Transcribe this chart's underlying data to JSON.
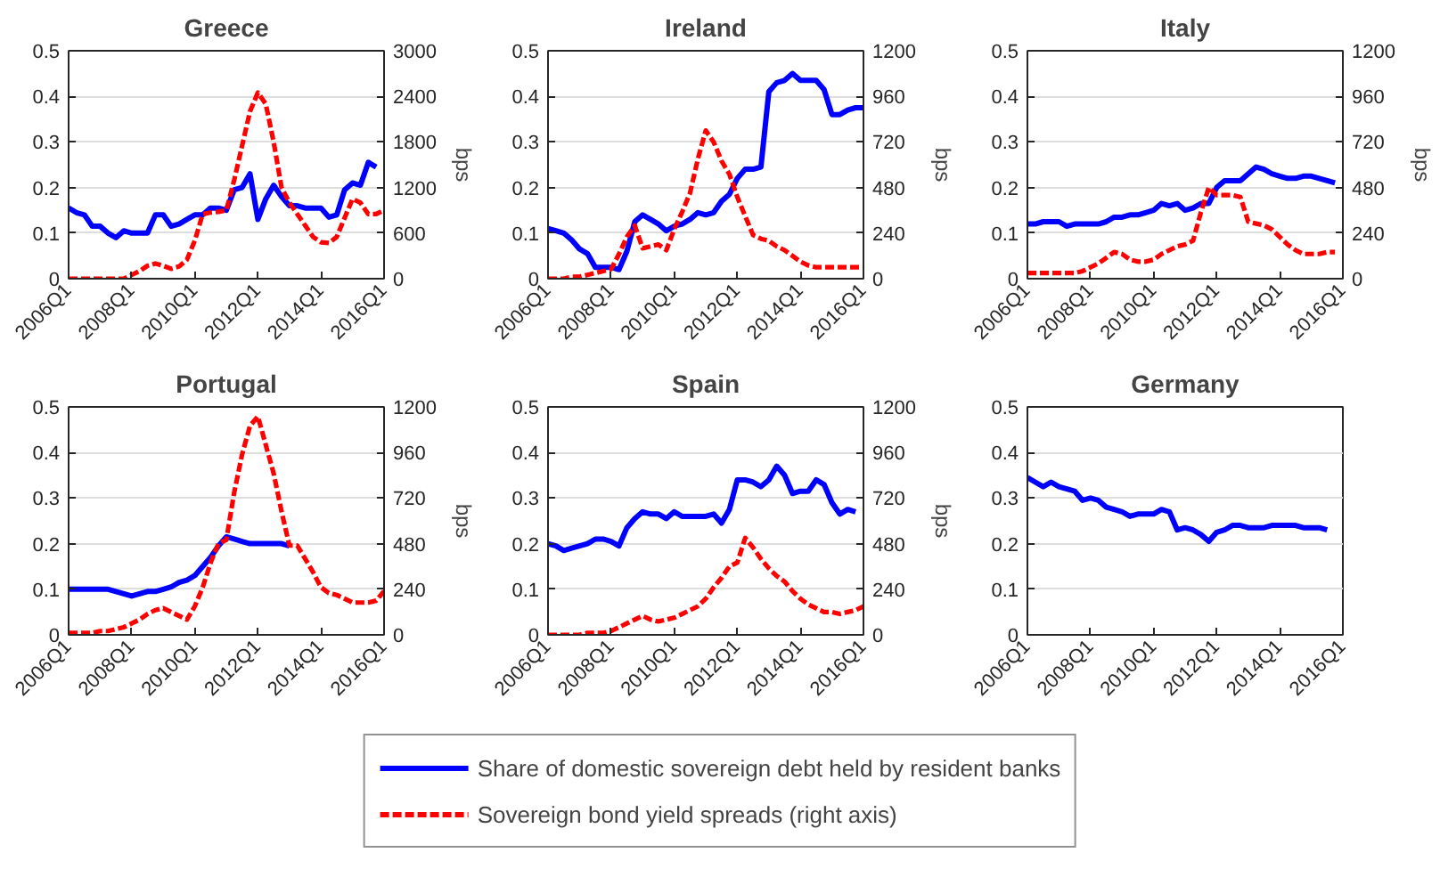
{
  "chart_data": [
    {
      "type": "line",
      "title": "Greece",
      "y2label": "bps",
      "ylim": [
        0,
        0.5
      ],
      "y2lim": [
        0,
        3000
      ],
      "categories": [
        "2006Q1",
        null,
        null,
        null,
        null,
        null,
        null,
        null,
        "2008Q1",
        null,
        null,
        null,
        null,
        null,
        null,
        null,
        "2010Q1",
        null,
        null,
        null,
        null,
        null,
        null,
        null,
        "2012Q1",
        null,
        null,
        null,
        null,
        null,
        null,
        null,
        "2014Q1",
        null,
        null,
        null,
        null,
        null,
        null,
        null,
        "2016Q1"
      ],
      "yticks": [
        0,
        0.1,
        0.2,
        0.3,
        0.4,
        0.5
      ],
      "y2ticks": [
        0,
        600,
        1200,
        1800,
        2400,
        3000
      ],
      "grid": "y",
      "legend": "bottom",
      "series": [
        {
          "name": "Share of domestic sovereign debt held by resident banks",
          "color": "#0000ff",
          "line_style": "solid",
          "values": [
            0.155,
            0.145,
            0.14,
            0.115,
            0.115,
            0.1,
            0.09,
            0.105,
            0.1,
            0.1,
            0.1,
            0.14,
            0.14,
            0.115,
            0.12,
            0.13,
            0.14,
            0.14,
            0.155,
            0.155,
            0.15,
            0.195,
            0.2,
            0.23,
            0.13,
            0.175,
            0.205,
            0.18,
            0.16,
            0.16,
            0.155,
            0.155,
            0.155,
            0.135,
            0.14,
            0.195,
            0.21,
            0.205,
            0.255,
            0.245,
            null
          ]
        },
        {
          "name": "Sovereign bond yield spreads (right axis)",
          "color": "#ff0000",
          "line_style": "dashed",
          "axis": "y2",
          "values": [
            0,
            0,
            0,
            0,
            0,
            0,
            0,
            0,
            50,
            100,
            170,
            200,
            170,
            130,
            160,
            250,
            500,
            850,
            870,
            880,
            900,
            1300,
            1750,
            2200,
            2450,
            2300,
            1800,
            1200,
            1000,
            850,
            700,
            550,
            480,
            470,
            550,
            800,
            1050,
            1000,
            850,
            850,
            900
          ]
        }
      ]
    },
    {
      "type": "line",
      "title": "Ireland",
      "y2label": "bps",
      "ylim": [
        0,
        0.5
      ],
      "y2lim": [
        0,
        1200
      ],
      "categories": [
        "2006Q1",
        null,
        null,
        null,
        null,
        null,
        null,
        null,
        "2008Q1",
        null,
        null,
        null,
        null,
        null,
        null,
        null,
        "2010Q1",
        null,
        null,
        null,
        null,
        null,
        null,
        null,
        "2012Q1",
        null,
        null,
        null,
        null,
        null,
        null,
        null,
        "2014Q1",
        null,
        null,
        null,
        null,
        null,
        null,
        null,
        "2016Q1"
      ],
      "yticks": [
        0,
        0.1,
        0.2,
        0.3,
        0.4,
        0.5
      ],
      "y2ticks": [
        0,
        240,
        480,
        720,
        960,
        1200
      ],
      "grid": "y",
      "series": [
        {
          "color": "#0000ff",
          "line_style": "solid",
          "values": [
            0.11,
            0.105,
            0.1,
            0.085,
            0.065,
            0.055,
            0.025,
            0.025,
            0.025,
            0.02,
            0.06,
            0.125,
            0.14,
            0.13,
            0.12,
            0.105,
            0.115,
            0.12,
            0.13,
            0.145,
            0.14,
            0.145,
            0.17,
            0.185,
            0.22,
            0.24,
            0.24,
            0.245,
            0.41,
            0.43,
            0.435,
            0.45,
            0.435,
            0.435,
            0.435,
            0.415,
            0.36,
            0.36,
            0.37,
            0.375,
            0.375
          ]
        },
        {
          "color": "#ff0000",
          "line_style": "dashed",
          "axis": "y2",
          "values": [
            0,
            0,
            0,
            10,
            10,
            20,
            30,
            40,
            50,
            130,
            220,
            280,
            160,
            170,
            180,
            150,
            260,
            350,
            450,
            630,
            780,
            720,
            620,
            550,
            430,
            330,
            230,
            210,
            200,
            170,
            150,
            120,
            90,
            70,
            60,
            60,
            60,
            60,
            60,
            60,
            60
          ]
        }
      ]
    },
    {
      "type": "line",
      "title": "Italy",
      "y2label": "bps",
      "ylim": [
        0,
        0.5
      ],
      "y2lim": [
        0,
        1200
      ],
      "categories": [
        "2006Q1",
        null,
        null,
        null,
        null,
        null,
        null,
        null,
        "2008Q1",
        null,
        null,
        null,
        null,
        null,
        null,
        null,
        "2010Q1",
        null,
        null,
        null,
        null,
        null,
        null,
        null,
        "2012Q1",
        null,
        null,
        null,
        null,
        null,
        null,
        null,
        "2014Q1",
        null,
        null,
        null,
        null,
        null,
        null,
        null,
        "2016Q1"
      ],
      "yticks": [
        0,
        0.1,
        0.2,
        0.3,
        0.4,
        0.5
      ],
      "y2ticks": [
        0,
        240,
        480,
        720,
        960,
        1200
      ],
      "grid": "y",
      "series": [
        {
          "color": "#0000ff",
          "line_style": "solid",
          "values": [
            0.12,
            0.12,
            0.125,
            0.125,
            0.125,
            0.115,
            0.12,
            0.12,
            0.12,
            0.12,
            0.125,
            0.135,
            0.135,
            0.14,
            0.14,
            0.145,
            0.15,
            0.165,
            0.16,
            0.165,
            0.15,
            0.155,
            0.165,
            0.165,
            0.2,
            0.215,
            0.215,
            0.215,
            0.23,
            0.245,
            0.24,
            0.23,
            0.225,
            0.22,
            0.22,
            0.225,
            0.225,
            0.22,
            0.215,
            0.21,
            null
          ]
        },
        {
          "color": "#ff0000",
          "line_style": "dashed",
          "axis": "y2",
          "values": [
            30,
            30,
            30,
            30,
            30,
            30,
            30,
            40,
            60,
            80,
            110,
            140,
            130,
            100,
            90,
            90,
            100,
            130,
            150,
            170,
            180,
            200,
            350,
            480,
            440,
            440,
            440,
            430,
            300,
            290,
            280,
            260,
            220,
            180,
            150,
            130,
            130,
            130,
            140,
            140,
            null
          ]
        }
      ]
    },
    {
      "type": "line",
      "title": "Portugal",
      "y2label": "bps",
      "ylim": [
        0,
        0.5
      ],
      "y2lim": [
        0,
        1200
      ],
      "categories": [
        "2006Q1",
        null,
        null,
        null,
        null,
        null,
        null,
        null,
        "2008Q1",
        null,
        null,
        null,
        null,
        null,
        null,
        null,
        "2010Q1",
        null,
        null,
        null,
        null,
        null,
        null,
        null,
        "2012Q1",
        null,
        null,
        null,
        null,
        null,
        null,
        null,
        "2014Q1",
        null,
        null,
        null,
        null,
        null,
        null,
        null,
        "2016Q1"
      ],
      "yticks": [
        0,
        0.1,
        0.2,
        0.3,
        0.4,
        0.5
      ],
      "y2ticks": [
        0,
        240,
        480,
        720,
        960,
        1200
      ],
      "grid": "y",
      "series": [
        {
          "color": "#0000ff",
          "line_style": "solid",
          "values": [
            0.1,
            0.1,
            0.1,
            0.1,
            0.1,
            0.1,
            0.095,
            0.09,
            0.085,
            0.09,
            0.095,
            0.095,
            0.1,
            0.105,
            0.115,
            0.12,
            0.13,
            0.15,
            0.17,
            0.195,
            0.215,
            0.21,
            0.205,
            0.2,
            0.2,
            0.2,
            0.2,
            0.2,
            0.195,
            null,
            null,
            null,
            null,
            null,
            null,
            null,
            null,
            null,
            null,
            null,
            null
          ]
        },
        {
          "color": "#ff0000",
          "line_style": "dashed",
          "axis": "y2",
          "values": [
            10,
            10,
            10,
            10,
            20,
            20,
            30,
            40,
            60,
            80,
            110,
            130,
            140,
            120,
            100,
            80,
            150,
            250,
            380,
            480,
            500,
            750,
            950,
            1100,
            1150,
            1000,
            850,
            650,
            470,
            470,
            400,
            330,
            250,
            220,
            210,
            190,
            170,
            170,
            170,
            180,
            230
          ]
        }
      ]
    },
    {
      "type": "line",
      "title": "Spain",
      "y2label": "bps",
      "ylim": [
        0,
        0.5
      ],
      "y2lim": [
        0,
        1200
      ],
      "categories": [
        "2006Q1",
        null,
        null,
        null,
        null,
        null,
        null,
        null,
        "2008Q1",
        null,
        null,
        null,
        null,
        null,
        null,
        null,
        "2010Q1",
        null,
        null,
        null,
        null,
        null,
        null,
        null,
        "2012Q1",
        null,
        null,
        null,
        null,
        null,
        null,
        null,
        "2014Q1",
        null,
        null,
        null,
        null,
        null,
        null,
        null,
        "2016Q1"
      ],
      "yticks": [
        0,
        0.1,
        0.2,
        0.3,
        0.4,
        0.5
      ],
      "y2ticks": [
        0,
        240,
        480,
        720,
        960,
        1200
      ],
      "grid": "y",
      "series": [
        {
          "color": "#0000ff",
          "line_style": "solid",
          "values": [
            0.2,
            0.195,
            0.185,
            0.19,
            0.195,
            0.2,
            0.21,
            0.21,
            0.205,
            0.195,
            0.235,
            0.255,
            0.27,
            0.265,
            0.265,
            0.255,
            0.27,
            0.26,
            0.26,
            0.26,
            0.26,
            0.265,
            0.245,
            0.275,
            0.34,
            0.34,
            0.335,
            0.325,
            0.34,
            0.37,
            0.35,
            0.31,
            0.315,
            0.315,
            0.34,
            0.33,
            0.29,
            0.265,
            0.275,
            0.27,
            null
          ]
        },
        {
          "color": "#ff0000",
          "line_style": "dashed",
          "axis": "y2",
          "values": [
            0,
            0,
            0,
            0,
            0,
            10,
            10,
            10,
            20,
            40,
            60,
            80,
            100,
            80,
            70,
            80,
            90,
            110,
            130,
            150,
            190,
            250,
            300,
            360,
            380,
            510,
            460,
            400,
            350,
            310,
            280,
            230,
            190,
            160,
            140,
            120,
            120,
            110,
            120,
            130,
            150
          ]
        }
      ]
    },
    {
      "type": "line",
      "title": "Germany",
      "ylim": [
        0,
        0.5
      ],
      "categories": [
        "2006Q1",
        null,
        null,
        null,
        null,
        null,
        null,
        null,
        "2008Q1",
        null,
        null,
        null,
        null,
        null,
        null,
        null,
        "2010Q1",
        null,
        null,
        null,
        null,
        null,
        null,
        null,
        "2012Q1",
        null,
        null,
        null,
        null,
        null,
        null,
        null,
        "2014Q1",
        null,
        null,
        null,
        null,
        null,
        null,
        null,
        "2016Q1"
      ],
      "yticks": [
        0,
        0.1,
        0.2,
        0.3,
        0.4,
        0.5
      ],
      "grid": "y",
      "series": [
        {
          "color": "#0000ff",
          "line_style": "solid",
          "values": [
            0.345,
            0.335,
            0.325,
            0.335,
            0.325,
            0.32,
            0.315,
            0.295,
            0.3,
            0.295,
            0.28,
            0.275,
            0.27,
            0.26,
            0.265,
            0.265,
            0.265,
            0.275,
            0.27,
            0.23,
            0.235,
            0.23,
            0.22,
            0.205,
            0.225,
            0.23,
            0.24,
            0.24,
            0.235,
            0.235,
            0.235,
            0.24,
            0.24,
            0.24,
            0.24,
            0.235,
            0.235,
            0.235,
            0.23,
            null,
            null
          ]
        }
      ]
    }
  ]
}
